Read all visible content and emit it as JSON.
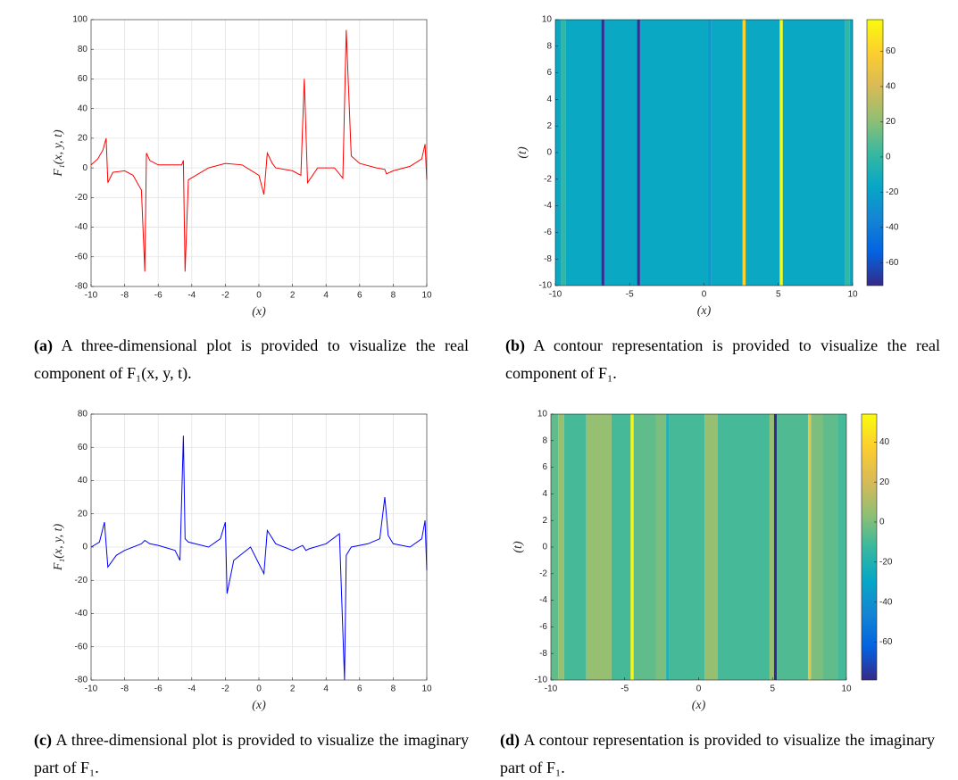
{
  "chart_data": [
    {
      "type": "line",
      "xlabel": "(x)",
      "ylabel": "F₁(x, y, t)",
      "color": "#ff0000",
      "grid": true,
      "x": [
        -10,
        -9.6,
        -9.3,
        -9.1,
        -9.0,
        -8.7,
        -8,
        -7.5,
        -7,
        -6.8,
        -6.7,
        -6.5,
        -6,
        -5,
        -4.6,
        -4.5,
        -4.4,
        -4.2,
        -3,
        -2,
        -1,
        0,
        0.3,
        0.5,
        0.8,
        1,
        2,
        2.5,
        2.7,
        2.9,
        3.5,
        4.5,
        5.0,
        5.2,
        5.5,
        6,
        7,
        7.5,
        7.6,
        8,
        9,
        9.7,
        9.9,
        10
      ],
      "values": [
        2,
        6,
        12,
        20,
        -10,
        -3,
        -2,
        -5,
        -15,
        -70,
        10,
        5,
        2,
        2,
        2,
        5,
        -70,
        -8,
        0,
        3,
        2,
        -5,
        -18,
        10,
        3,
        0,
        -2,
        -5,
        60,
        -10,
        0,
        0,
        -7,
        93,
        8,
        3,
        0,
        -1,
        -4,
        -2,
        1,
        6,
        16,
        -8
      ],
      "xlim": [
        -10,
        10
      ],
      "xticks": [
        -10,
        -8,
        -6,
        -4,
        -2,
        0,
        2,
        4,
        6,
        8,
        10
      ],
      "ylim": [
        -80,
        100
      ],
      "yticks": [
        -80,
        -60,
        -40,
        -20,
        0,
        20,
        40,
        60,
        80,
        100
      ]
    },
    {
      "type": "heatmap",
      "xlabel": "(x)",
      "ylabel": "(t)",
      "colormap": "parula",
      "x_edges": [
        -10,
        -9.6,
        -9.3,
        -6.9,
        -6.7,
        -4.5,
        -4.3,
        0.3,
        0.5,
        2.6,
        2.8,
        5.1,
        5.3,
        9.5,
        9.8,
        10
      ],
      "values": [
        -15,
        0,
        -15,
        -70,
        -15,
        -70,
        -15,
        -25,
        -15,
        60,
        -15,
        78,
        -15,
        0,
        -15
      ],
      "xlim": [
        -10,
        10
      ],
      "xticks": [
        -10,
        -5,
        0,
        5,
        10
      ],
      "ylim": [
        -10,
        10
      ],
      "yticks": [
        -10,
        -8,
        -6,
        -4,
        -2,
        0,
        2,
        4,
        6,
        8,
        10
      ],
      "clim": [
        -73,
        78
      ],
      "colorbar_ticks": [
        -60,
        -40,
        -20,
        0,
        20,
        40,
        60
      ]
    },
    {
      "type": "line",
      "xlabel": "(x)",
      "ylabel": "F₁(x, y, t)",
      "color": "#0000ff",
      "grid": true,
      "x": [
        -10,
        -9.5,
        -9.2,
        -9.0,
        -8.5,
        -8,
        -7,
        -6.8,
        -6.5,
        -6,
        -5,
        -4.7,
        -4.5,
        -4.4,
        -4.2,
        -3,
        -2.3,
        -2.0,
        -1.9,
        -1.5,
        -0.5,
        0.3,
        0.5,
        1,
        2,
        2.6,
        2.8,
        3,
        4,
        4.8,
        5.1,
        5.2,
        5.5,
        6.5,
        7.2,
        7.5,
        7.7,
        8,
        9,
        9.7,
        9.9,
        10
      ],
      "values": [
        0,
        3,
        15,
        -12,
        -5,
        -2,
        2,
        4,
        2,
        1,
        -2,
        -8,
        67,
        5,
        3,
        0,
        5,
        15,
        -28,
        -8,
        0,
        -16,
        10,
        2,
        -2,
        1,
        -2,
        -1,
        2,
        8,
        -80,
        -5,
        0,
        2,
        5,
        30,
        7,
        2,
        0,
        5,
        16,
        -14
      ],
      "xlim": [
        -10,
        10
      ],
      "xticks": [
        -10,
        -8,
        -6,
        -4,
        -2,
        0,
        2,
        4,
        6,
        8,
        10
      ],
      "ylim": [
        -80,
        80
      ],
      "yticks": [
        -80,
        -60,
        -40,
        -20,
        0,
        20,
        40,
        60,
        80
      ]
    },
    {
      "type": "heatmap",
      "xlabel": "(x)",
      "ylabel": "(t)",
      "colormap": "parula",
      "x_edges": [
        -10,
        -9.5,
        -9.1,
        -7.6,
        -5.9,
        -4.6,
        -4.4,
        -2.9,
        -2.2,
        -2.0,
        0.4,
        1.3,
        4.8,
        5.1,
        5.3,
        7.4,
        7.6,
        8.4,
        9.4,
        10
      ],
      "values": [
        -5,
        5,
        -10,
        5,
        -10,
        52,
        -5,
        0,
        -20,
        -10,
        5,
        -10,
        5,
        -78,
        -8,
        30,
        0,
        -5,
        -10
      ],
      "xlim": [
        -10,
        10
      ],
      "xticks": [
        -10,
        -5,
        0,
        5,
        10
      ],
      "ylim": [
        -10,
        10
      ],
      "yticks": [
        -10,
        -8,
        -6,
        -4,
        -2,
        0,
        2,
        4,
        6,
        8,
        10
      ],
      "clim": [
        -79,
        54
      ],
      "colorbar_ticks": [
        -60,
        -40,
        -20,
        0,
        20,
        40
      ]
    }
  ],
  "captions": [
    {
      "label": "(a)",
      "text": "A three-dimensional plot is provided to visualize the real component of F₁(x, y, t)."
    },
    {
      "label": "(b)",
      "text": "A contour representation is provided to visualize the real component of F₁."
    },
    {
      "label": "(c)",
      "text": "A three-dimensional plot is provided to visualize the imaginary part of F₁."
    },
    {
      "label": "(d)",
      "text": "A contour representation is provided to visualize the imaginary part of F₁."
    }
  ]
}
